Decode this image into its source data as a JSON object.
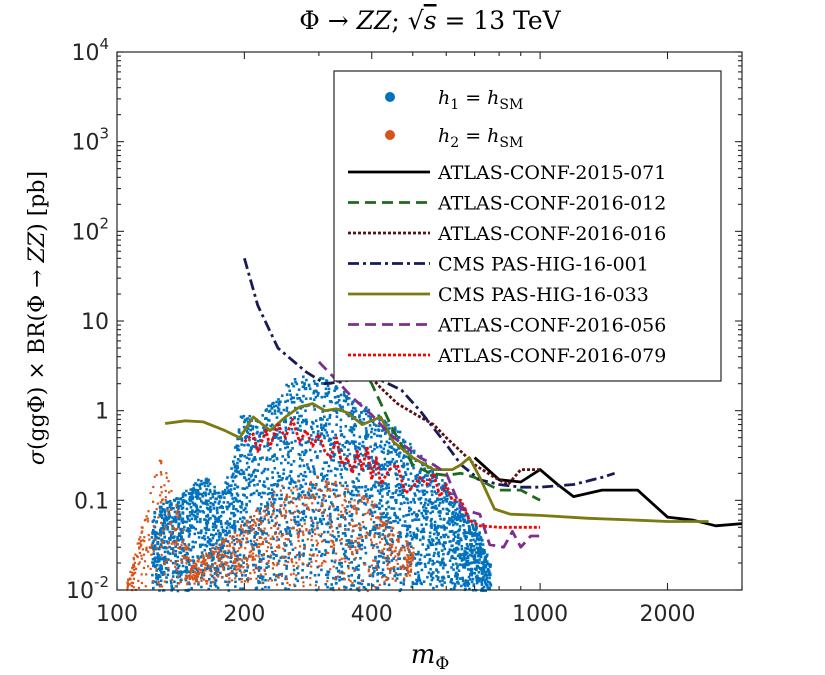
{
  "chart_data": {
    "type": "scatter",
    "title": "Φ → ZZ; √s = 13 TeV",
    "xlabel": "m_Φ",
    "ylabel": "σ(ggΦ) × BR(Φ → ZZ) [pb]",
    "xscale": "log",
    "yscale": "log",
    "xlim": [
      100,
      3000
    ],
    "ylim": [
      0.01,
      10000
    ],
    "x_ticks": [
      {
        "value": 100,
        "label": "100"
      },
      {
        "value": 200,
        "label": "200"
      },
      {
        "value": 400,
        "label": "400"
      },
      {
        "value": 1000,
        "label": "1000"
      },
      {
        "value": 2000,
        "label": "2000"
      }
    ],
    "y_ticks": [
      {
        "value": 0.01,
        "base": "10",
        "exp": "-2"
      },
      {
        "value": 0.1,
        "label": "0.1"
      },
      {
        "value": 1,
        "label": "1"
      },
      {
        "value": 10,
        "label": "10"
      },
      {
        "value": 100,
        "base": "10",
        "exp": "2"
      },
      {
        "value": 1000,
        "base": "10",
        "exp": "3"
      },
      {
        "value": 10000,
        "base": "10",
        "exp": "4"
      }
    ],
    "legend_position": "top-right",
    "scatter_series": [
      {
        "name": "h1 = hSM",
        "color": "#0072BD",
        "envelope": [
          [
            120,
            0.01,
            0.08
          ],
          [
            140,
            0.01,
            0.12
          ],
          [
            160,
            0.01,
            0.2
          ],
          [
            175,
            0.01,
            0.12
          ],
          [
            185,
            0.01,
            0.25
          ],
          [
            195,
            0.01,
            0.9
          ],
          [
            220,
            0.01,
            1.0
          ],
          [
            260,
            0.01,
            2.5
          ],
          [
            300,
            0.01,
            2.5
          ],
          [
            350,
            0.01,
            1.6
          ],
          [
            400,
            0.01,
            1.0
          ],
          [
            450,
            0.01,
            0.7
          ],
          [
            500,
            0.01,
            0.4
          ],
          [
            600,
            0.01,
            0.15
          ],
          [
            700,
            0.01,
            0.06
          ],
          [
            760,
            0.01,
            0.02
          ]
        ]
      },
      {
        "name": "h2 = hSM",
        "color": "#D95319",
        "envelope": [
          [
            105,
            0.01,
            0.012
          ],
          [
            112,
            0.01,
            0.04
          ],
          [
            120,
            0.01,
            0.15
          ],
          [
            125,
            0.01,
            0.4
          ],
          [
            130,
            0.01,
            0.25
          ],
          [
            150,
            0.012,
            0.02
          ],
          [
            200,
            0.012,
            0.06
          ],
          [
            240,
            0.011,
            0.15
          ],
          [
            300,
            0.01,
            0.2
          ],
          [
            350,
            0.01,
            0.15
          ],
          [
            400,
            0.01,
            0.1
          ],
          [
            450,
            0.012,
            0.05
          ],
          [
            500,
            0.014,
            0.03
          ]
        ]
      }
    ],
    "series": [
      {
        "name": "ATLAS-CONF-2015-071",
        "color": "#000000",
        "dash": "solid",
        "points": [
          [
            700,
            0.3
          ],
          [
            800,
            0.17
          ],
          [
            900,
            0.16
          ],
          [
            1000,
            0.22
          ],
          [
            1100,
            0.15
          ],
          [
            1200,
            0.11
          ],
          [
            1400,
            0.13
          ],
          [
            1700,
            0.13
          ],
          [
            2000,
            0.065
          ],
          [
            2300,
            0.06
          ],
          [
            2600,
            0.052
          ],
          [
            3000,
            0.055
          ]
        ]
      },
      {
        "name": "ATLAS-CONF-2016-012",
        "color": "#1E6B1E",
        "dash": "dash",
        "points": [
          [
            360,
            4.5
          ],
          [
            400,
            2.0
          ],
          [
            450,
            0.6
          ],
          [
            500,
            0.25
          ],
          [
            550,
            0.2
          ],
          [
            600,
            0.19
          ],
          [
            650,
            0.2
          ],
          [
            700,
            0.18
          ],
          [
            800,
            0.13
          ],
          [
            900,
            0.13
          ],
          [
            1000,
            0.1
          ]
        ]
      },
      {
        "name": "ATLAS-CONF-2016-016",
        "color": "#5A1010",
        "dash": "dotted",
        "points": [
          [
            350,
            6
          ],
          [
            380,
            3.0
          ],
          [
            420,
            1.8
          ],
          [
            460,
            1.2
          ],
          [
            500,
            0.95
          ],
          [
            560,
            0.7
          ],
          [
            600,
            0.5
          ],
          [
            650,
            0.35
          ],
          [
            700,
            0.25
          ],
          [
            780,
            0.18
          ],
          [
            840,
            0.15
          ],
          [
            900,
            0.22
          ],
          [
            1000,
            0.22
          ]
        ]
      },
      {
        "name": "CMS PAS-HIG-16-001",
        "color": "#1A1A5A",
        "dash": "dashdot",
        "points": [
          [
            200,
            50
          ],
          [
            215,
            15
          ],
          [
            240,
            5
          ],
          [
            280,
            2.7
          ],
          [
            310,
            2.0
          ],
          [
            340,
            2.1
          ],
          [
            380,
            2.4
          ],
          [
            420,
            2.2
          ],
          [
            470,
            1.7
          ],
          [
            520,
            1.0
          ],
          [
            600,
            0.42
          ],
          [
            650,
            0.25
          ],
          [
            720,
            0.17
          ],
          [
            800,
            0.15
          ],
          [
            900,
            0.14
          ],
          [
            1000,
            0.14
          ],
          [
            1200,
            0.15
          ],
          [
            1400,
            0.18
          ],
          [
            1500,
            0.2
          ]
        ]
      },
      {
        "name": "CMS PAS-HIG-16-033",
        "color": "#7A7A10",
        "dash": "solid",
        "points": [
          [
            130,
            0.72
          ],
          [
            145,
            0.77
          ],
          [
            160,
            0.75
          ],
          [
            180,
            0.6
          ],
          [
            195,
            0.5
          ],
          [
            210,
            0.85
          ],
          [
            230,
            0.6
          ],
          [
            250,
            0.85
          ],
          [
            270,
            1.1
          ],
          [
            290,
            1.2
          ],
          [
            310,
            1.0
          ],
          [
            330,
            1.05
          ],
          [
            350,
            0.95
          ],
          [
            380,
            0.7
          ],
          [
            420,
            0.85
          ],
          [
            450,
            0.45
          ],
          [
            500,
            0.3
          ],
          [
            560,
            0.22
          ],
          [
            620,
            0.22
          ],
          [
            650,
            0.25
          ],
          [
            680,
            0.3
          ],
          [
            720,
            0.18
          ],
          [
            780,
            0.08
          ],
          [
            850,
            0.07
          ],
          [
            1000,
            0.068
          ],
          [
            1300,
            0.063
          ],
          [
            1700,
            0.06
          ],
          [
            2000,
            0.058
          ],
          [
            2500,
            0.058
          ]
        ]
      },
      {
        "name": "ATLAS-CONF-2016-056",
        "color": "#7E2F8E",
        "dash": "dash",
        "points": [
          [
            300,
            3.5
          ],
          [
            330,
            2.2
          ],
          [
            360,
            1.4
          ],
          [
            400,
            0.9
          ],
          [
            440,
            0.55
          ],
          [
            480,
            0.4
          ],
          [
            520,
            0.3
          ],
          [
            560,
            0.25
          ],
          [
            600,
            0.2
          ],
          [
            650,
            0.08
          ],
          [
            720,
            0.07
          ],
          [
            760,
            0.032
          ],
          [
            820,
            0.03
          ],
          [
            860,
            0.045
          ],
          [
            900,
            0.03
          ],
          [
            950,
            0.04
          ],
          [
            1000,
            0.04
          ]
        ]
      },
      {
        "name": "ATLAS-CONF-2016-079",
        "color": "#FF0000",
        "dash": "dotted",
        "points": [
          [
            200,
            0.45
          ],
          [
            210,
            0.55
          ],
          [
            215,
            0.35
          ],
          [
            225,
            0.6
          ],
          [
            230,
            0.4
          ],
          [
            240,
            0.7
          ],
          [
            250,
            0.5
          ],
          [
            260,
            0.8
          ],
          [
            270,
            0.45
          ],
          [
            280,
            0.6
          ],
          [
            290,
            0.4
          ],
          [
            300,
            0.55
          ],
          [
            310,
            0.35
          ],
          [
            320,
            0.3
          ],
          [
            330,
            0.5
          ],
          [
            340,
            0.25
          ],
          [
            350,
            0.3
          ],
          [
            360,
            0.2
          ],
          [
            370,
            0.35
          ],
          [
            380,
            0.22
          ],
          [
            390,
            0.4
          ],
          [
            400,
            0.17
          ],
          [
            410,
            0.3
          ],
          [
            420,
            0.15
          ],
          [
            440,
            0.22
          ],
          [
            460,
            0.25
          ],
          [
            480,
            0.12
          ],
          [
            500,
            0.14
          ],
          [
            520,
            0.18
          ],
          [
            540,
            0.15
          ],
          [
            560,
            0.2
          ],
          [
            580,
            0.11
          ],
          [
            600,
            0.15
          ],
          [
            620,
            0.1
          ],
          [
            650,
            0.1
          ],
          [
            680,
            0.06
          ],
          [
            720,
            0.052
          ],
          [
            800,
            0.05
          ],
          [
            900,
            0.05
          ],
          [
            1000,
            0.05
          ]
        ]
      }
    ]
  },
  "title": {
    "prefix": "Φ → ",
    "zz": "ZZ",
    "sep": "; ",
    "sqrt": "√",
    "s": "s",
    "eq": " = 13 TeV"
  },
  "xlabel": {
    "m": "m",
    "sub": "Φ"
  },
  "ylabel": {
    "sigma": "σ",
    "g1": "(gg",
    "phi1": "Φ",
    "p1": ")",
    "times": " × BR(Φ → ",
    "zz": "ZZ",
    "rest": ") [pb]"
  },
  "legend": {
    "h1": "h",
    "h1_sub": "1",
    "h1_eq": " = ",
    "h1_sm": "h",
    "h1_sm_sub": "SM",
    "h2": "h",
    "h2_sub": "2",
    "h2_eq": " = ",
    "h2_sm": "h",
    "h2_sm_sub": "SM"
  }
}
